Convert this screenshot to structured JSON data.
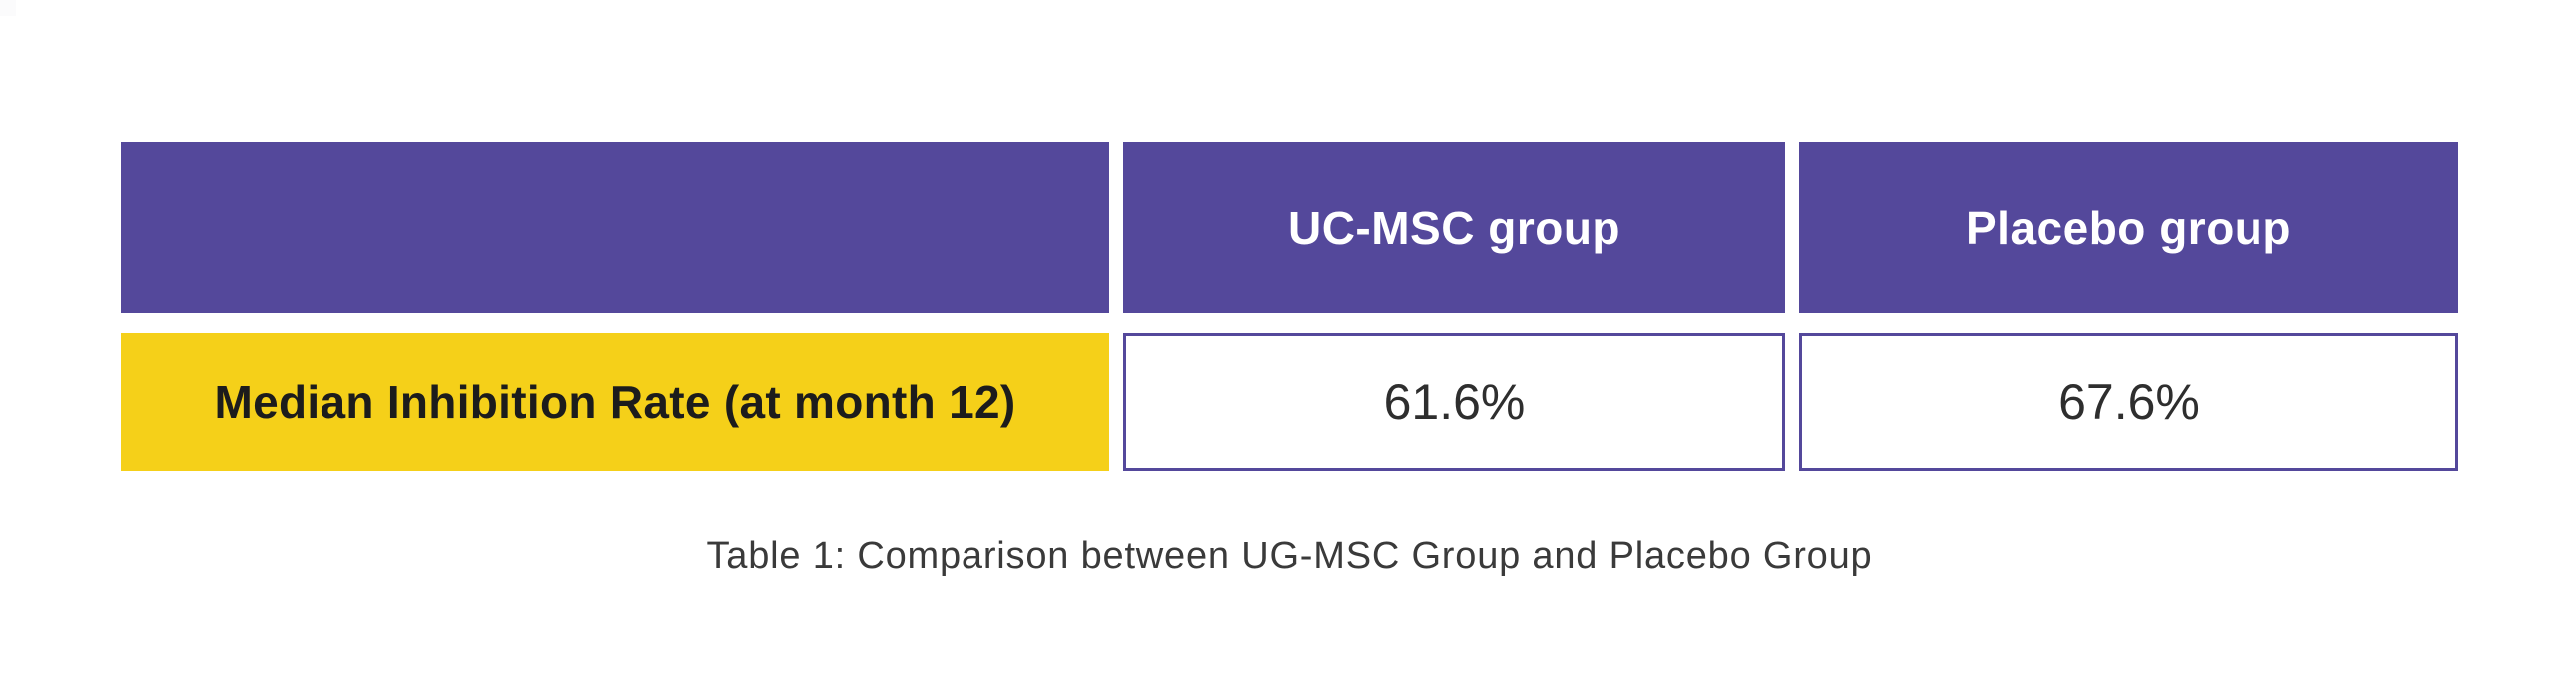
{
  "colors": {
    "page_bg": "#FFFFFF",
    "header_bg": "#54489B",
    "header_text": "#FFFFFF",
    "label_bg": "#F5D019",
    "label_text": "#1C1C1C",
    "value_text": "#2E2E2E",
    "cell_border": "#54489B",
    "caption_text": "#3A3A3A",
    "corner_artifact": "#FBFBFC"
  },
  "chart_data": {
    "type": "table",
    "title": "Table 1: Comparison between UG-MSC Group and Placebo Group",
    "columns": [
      "",
      "UC-MSC group",
      "Placebo group"
    ],
    "rows": [
      [
        "Median Inhibition Rate (at month 12)",
        "61.6%",
        "67.6%"
      ]
    ]
  }
}
